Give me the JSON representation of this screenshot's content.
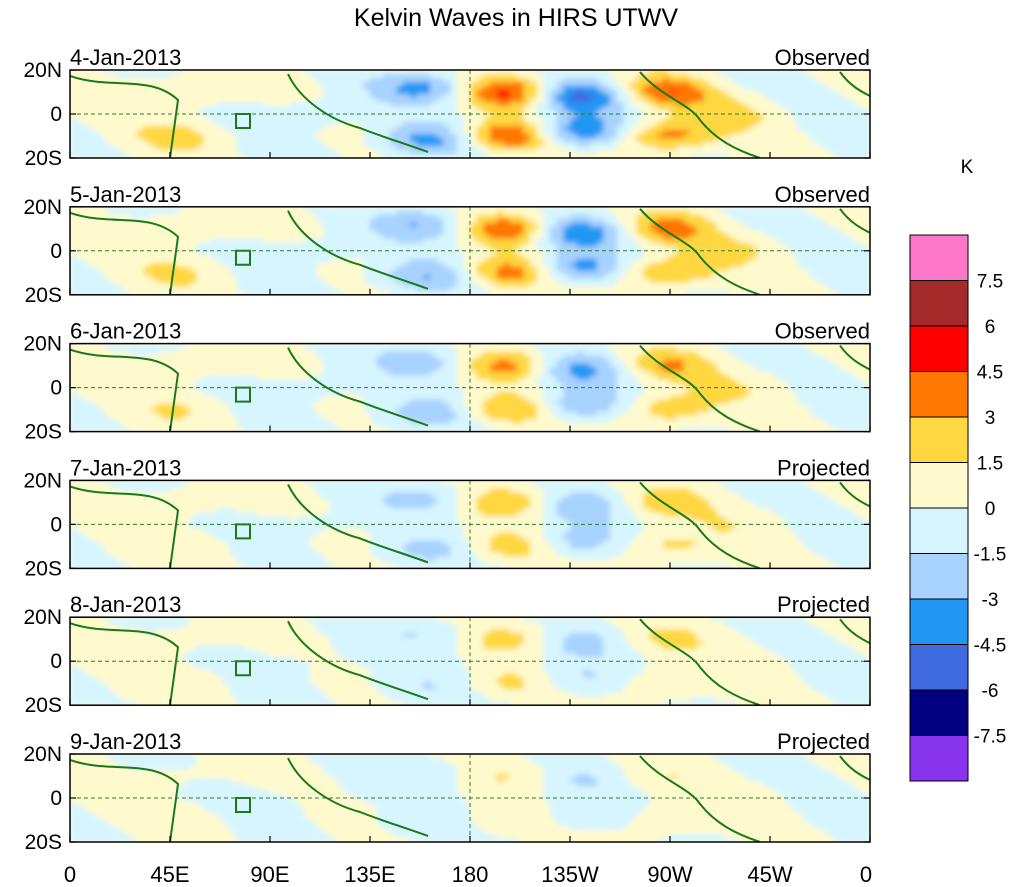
{
  "chart_data": {
    "type": "heatmap",
    "title": "Kelvin Waves in HIRS UTWV",
    "colorbar": {
      "unit": "K",
      "levels": [
        "7.5",
        "6",
        "4.5",
        "3",
        "1.5",
        "0",
        "-1.5",
        "-3",
        "-4.5",
        "-6",
        "-7.5"
      ],
      "colors": [
        "#ff77c8",
        "#a52a2a",
        "#ff0000",
        "#ff7700",
        "#ffd740",
        "#fffacd",
        "#d6f5ff",
        "#a8d2ff",
        "#2196f3",
        "#3f6ae0",
        "#000080",
        "#8833ee"
      ]
    },
    "x_ticks": [
      "0",
      "45E",
      "90E",
      "135E",
      "180",
      "135W",
      "90W",
      "45W",
      "0"
    ],
    "y_ticks": [
      "20N",
      "0",
      "20S"
    ],
    "x_range": [
      0,
      360
    ],
    "y_range": [
      -20,
      20
    ],
    "panels": [
      {
        "date": "4-Jan-2013",
        "label": "Observed",
        "amplitude": 1.0
      },
      {
        "date": "5-Jan-2013",
        "label": "Observed",
        "amplitude": 0.85
      },
      {
        "date": "6-Jan-2013",
        "label": "Observed",
        "amplitude": 0.7
      },
      {
        "date": "7-Jan-2013",
        "label": "Projected",
        "amplitude": 0.55
      },
      {
        "date": "8-Jan-2013",
        "label": "Projected",
        "amplitude": 0.4
      },
      {
        "date": "9-Jan-2013",
        "label": "Projected",
        "amplitude": 0.28
      }
    ],
    "features": [
      {
        "lon": 198,
        "lat": 10,
        "value": 5.0
      },
      {
        "lon": 198,
        "lat": -10,
        "value": 5.0
      },
      {
        "lon": 160,
        "lat": 12,
        "value": -3.5
      },
      {
        "lon": 160,
        "lat": -12,
        "value": -3.5
      },
      {
        "lon": 228,
        "lat": 8,
        "value": -5.0
      },
      {
        "lon": 228,
        "lat": -8,
        "value": -5.0
      },
      {
        "lon": 268,
        "lat": 10,
        "value": 4.0
      },
      {
        "lon": 268,
        "lat": -10,
        "value": 4.0
      },
      {
        "lon": 50,
        "lat": 10,
        "value": 1.8
      },
      {
        "lon": 50,
        "lat": -10,
        "value": 1.8
      },
      {
        "lon": 300,
        "lat": 0,
        "value": 1.6
      },
      {
        "lon": 110,
        "lat": 0,
        "value": -1.2
      }
    ]
  }
}
